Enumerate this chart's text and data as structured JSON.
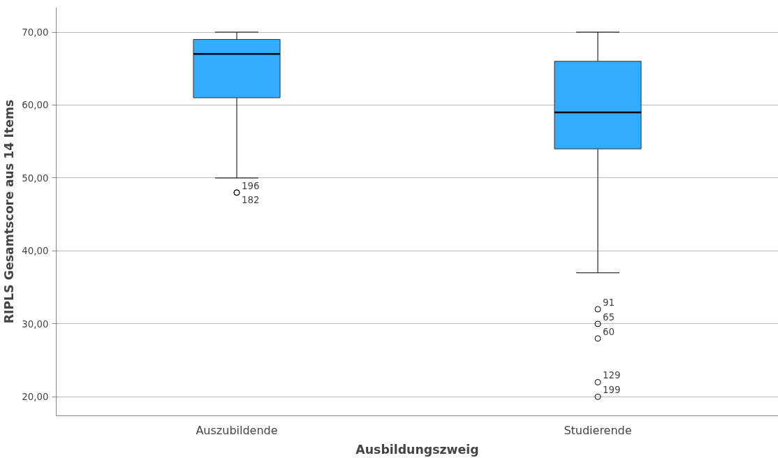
{
  "chart_data": {
    "type": "box",
    "xlabel": "Ausbildungszweig",
    "ylabel": "RIPLS Gesamtscore aus 14 Items",
    "categories": [
      "Auszubildende",
      "Studierende"
    ],
    "series": [
      {
        "color": "#33acff",
        "boxes": [
          {
            "low": 50,
            "q1": 61,
            "median": 67,
            "q3": 69,
            "high": 70,
            "outliers": [
              48,
              48
            ]
          },
          {
            "low": 37,
            "q1": 54,
            "median": 59,
            "q3": 66,
            "high": 70,
            "outliers": [
              32,
              30,
              28,
              22,
              20
            ]
          }
        ]
      }
    ],
    "ylim": [
      17.4,
      73.4
    ],
    "yticks": [
      {
        "value": 20,
        "label": "20,00"
      },
      {
        "value": 30,
        "label": "30,00"
      },
      {
        "value": 40,
        "label": "40,00"
      },
      {
        "value": 50,
        "label": "50,00"
      },
      {
        "value": 60,
        "label": "60,00"
      },
      {
        "value": 70,
        "label": "70,00"
      }
    ],
    "grid": "y",
    "legend": false,
    "marker": "circle",
    "annotations": [
      "196",
      "182",
      "91",
      "65",
      "60",
      "129",
      "199"
    ]
  }
}
